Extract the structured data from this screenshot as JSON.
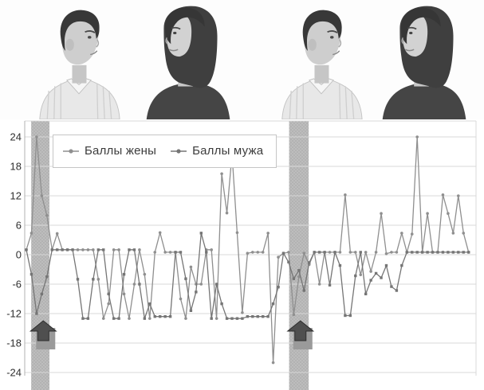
{
  "photos": {
    "panel1": {
      "left_person": "husband-distressed-profile-facing-right",
      "right_person": "wife-smiling-profile-facing-left"
    },
    "panel2": {
      "left_person": "husband-stern-profile-facing-right",
      "right_person": "wife-sad-profile-facing-left"
    }
  },
  "chart_data": {
    "type": "line",
    "title": "",
    "xlabel": "",
    "ylabel": "",
    "ylim": [
      -27,
      27
    ],
    "yticks": [
      24,
      18,
      12,
      6,
      0,
      -6,
      -12,
      -18,
      -24
    ],
    "grid": "horizontal",
    "legend_position": "top-left",
    "point_count": 87,
    "series": [
      {
        "name": "Баллы жены",
        "color": "#8f8f8f",
        "marker": "circle",
        "values": [
          1,
          4.4,
          24,
          12,
          8,
          1,
          4.3,
          1,
          1,
          1,
          1,
          1,
          1,
          1,
          -5,
          -13,
          -10,
          1,
          1,
          -8,
          -13,
          -6,
          1,
          -4,
          -13,
          0.5,
          4.5,
          0.5,
          0.5,
          0.5,
          -9,
          -13,
          -2.5,
          -6,
          -6,
          1,
          1,
          -13,
          16.5,
          8.5,
          20.5,
          4.5,
          -11.8,
          0.3,
          0.5,
          0.5,
          0.5,
          4.4,
          -22,
          -0.5,
          0.3,
          0.5,
          -12.2,
          -4.5,
          0.3,
          -2,
          0.5,
          -6,
          0.5,
          0.5,
          0.5,
          0.5,
          12.2,
          0.5,
          0.5,
          -4.1,
          0.5,
          -3.4,
          0.5,
          8.4,
          0.2,
          0.5,
          0.5,
          4.4,
          0.5,
          4.2,
          24,
          0.5,
          8.4,
          0.5,
          0.5,
          12.2,
          8.4,
          4.4,
          12,
          4.4,
          0.5
        ]
      },
      {
        "name": "Баллы мужа",
        "color": "#757575",
        "marker": "square",
        "values": [
          1,
          -4,
          -12,
          -8,
          -4.5,
          1,
          1,
          1,
          1,
          1,
          -5,
          -13,
          -13,
          -5,
          1,
          1,
          -8,
          -13,
          -13,
          -4,
          1,
          1,
          -6,
          -13,
          -10,
          -12.6,
          -12.6,
          -12.6,
          -12.6,
          0.5,
          0.5,
          -4.9,
          -11.4,
          -7.6,
          4.4,
          0.5,
          -13,
          -6,
          -10,
          -13,
          -13,
          -13,
          -13,
          -12.6,
          -12.6,
          -12.6,
          -12.6,
          -12.6,
          -10,
          -6.6,
          0.3,
          -1.5,
          -4.9,
          -3.2,
          -7.3,
          -1.6,
          0.5,
          0.5,
          0.5,
          -6.2,
          0.5,
          -2.2,
          -12.4,
          -12.4,
          -4.3,
          0.5,
          -8,
          -5.2,
          -3.8,
          -4.7,
          -2.2,
          -6.5,
          -7.3,
          -2.2,
          0.5,
          0.5,
          0.5,
          0.5,
          0.5,
          0.5,
          0.5,
          0.5,
          0.5,
          0.5,
          0.5,
          0.5,
          0.5
        ]
      }
    ],
    "highlight_bands": [
      {
        "from_index": 0.95,
        "to_index": 4.5
      },
      {
        "from_index": 51.1,
        "to_index": 54.9
      }
    ],
    "event_arrows": [
      {
        "at_index": 3.3
      },
      {
        "at_index": 53.3
      }
    ],
    "colors": {
      "band": "#bdbdbd",
      "band_dot": "#a6a6a6",
      "grid": "#d9d9d9",
      "axis": "#b0b0b0",
      "tick_text": "#2e2e2e",
      "arrow_fill": "#4f4f4f",
      "arrow_edge": "#2e2e2e",
      "arrow_shadow": "#9a9a9a"
    }
  }
}
